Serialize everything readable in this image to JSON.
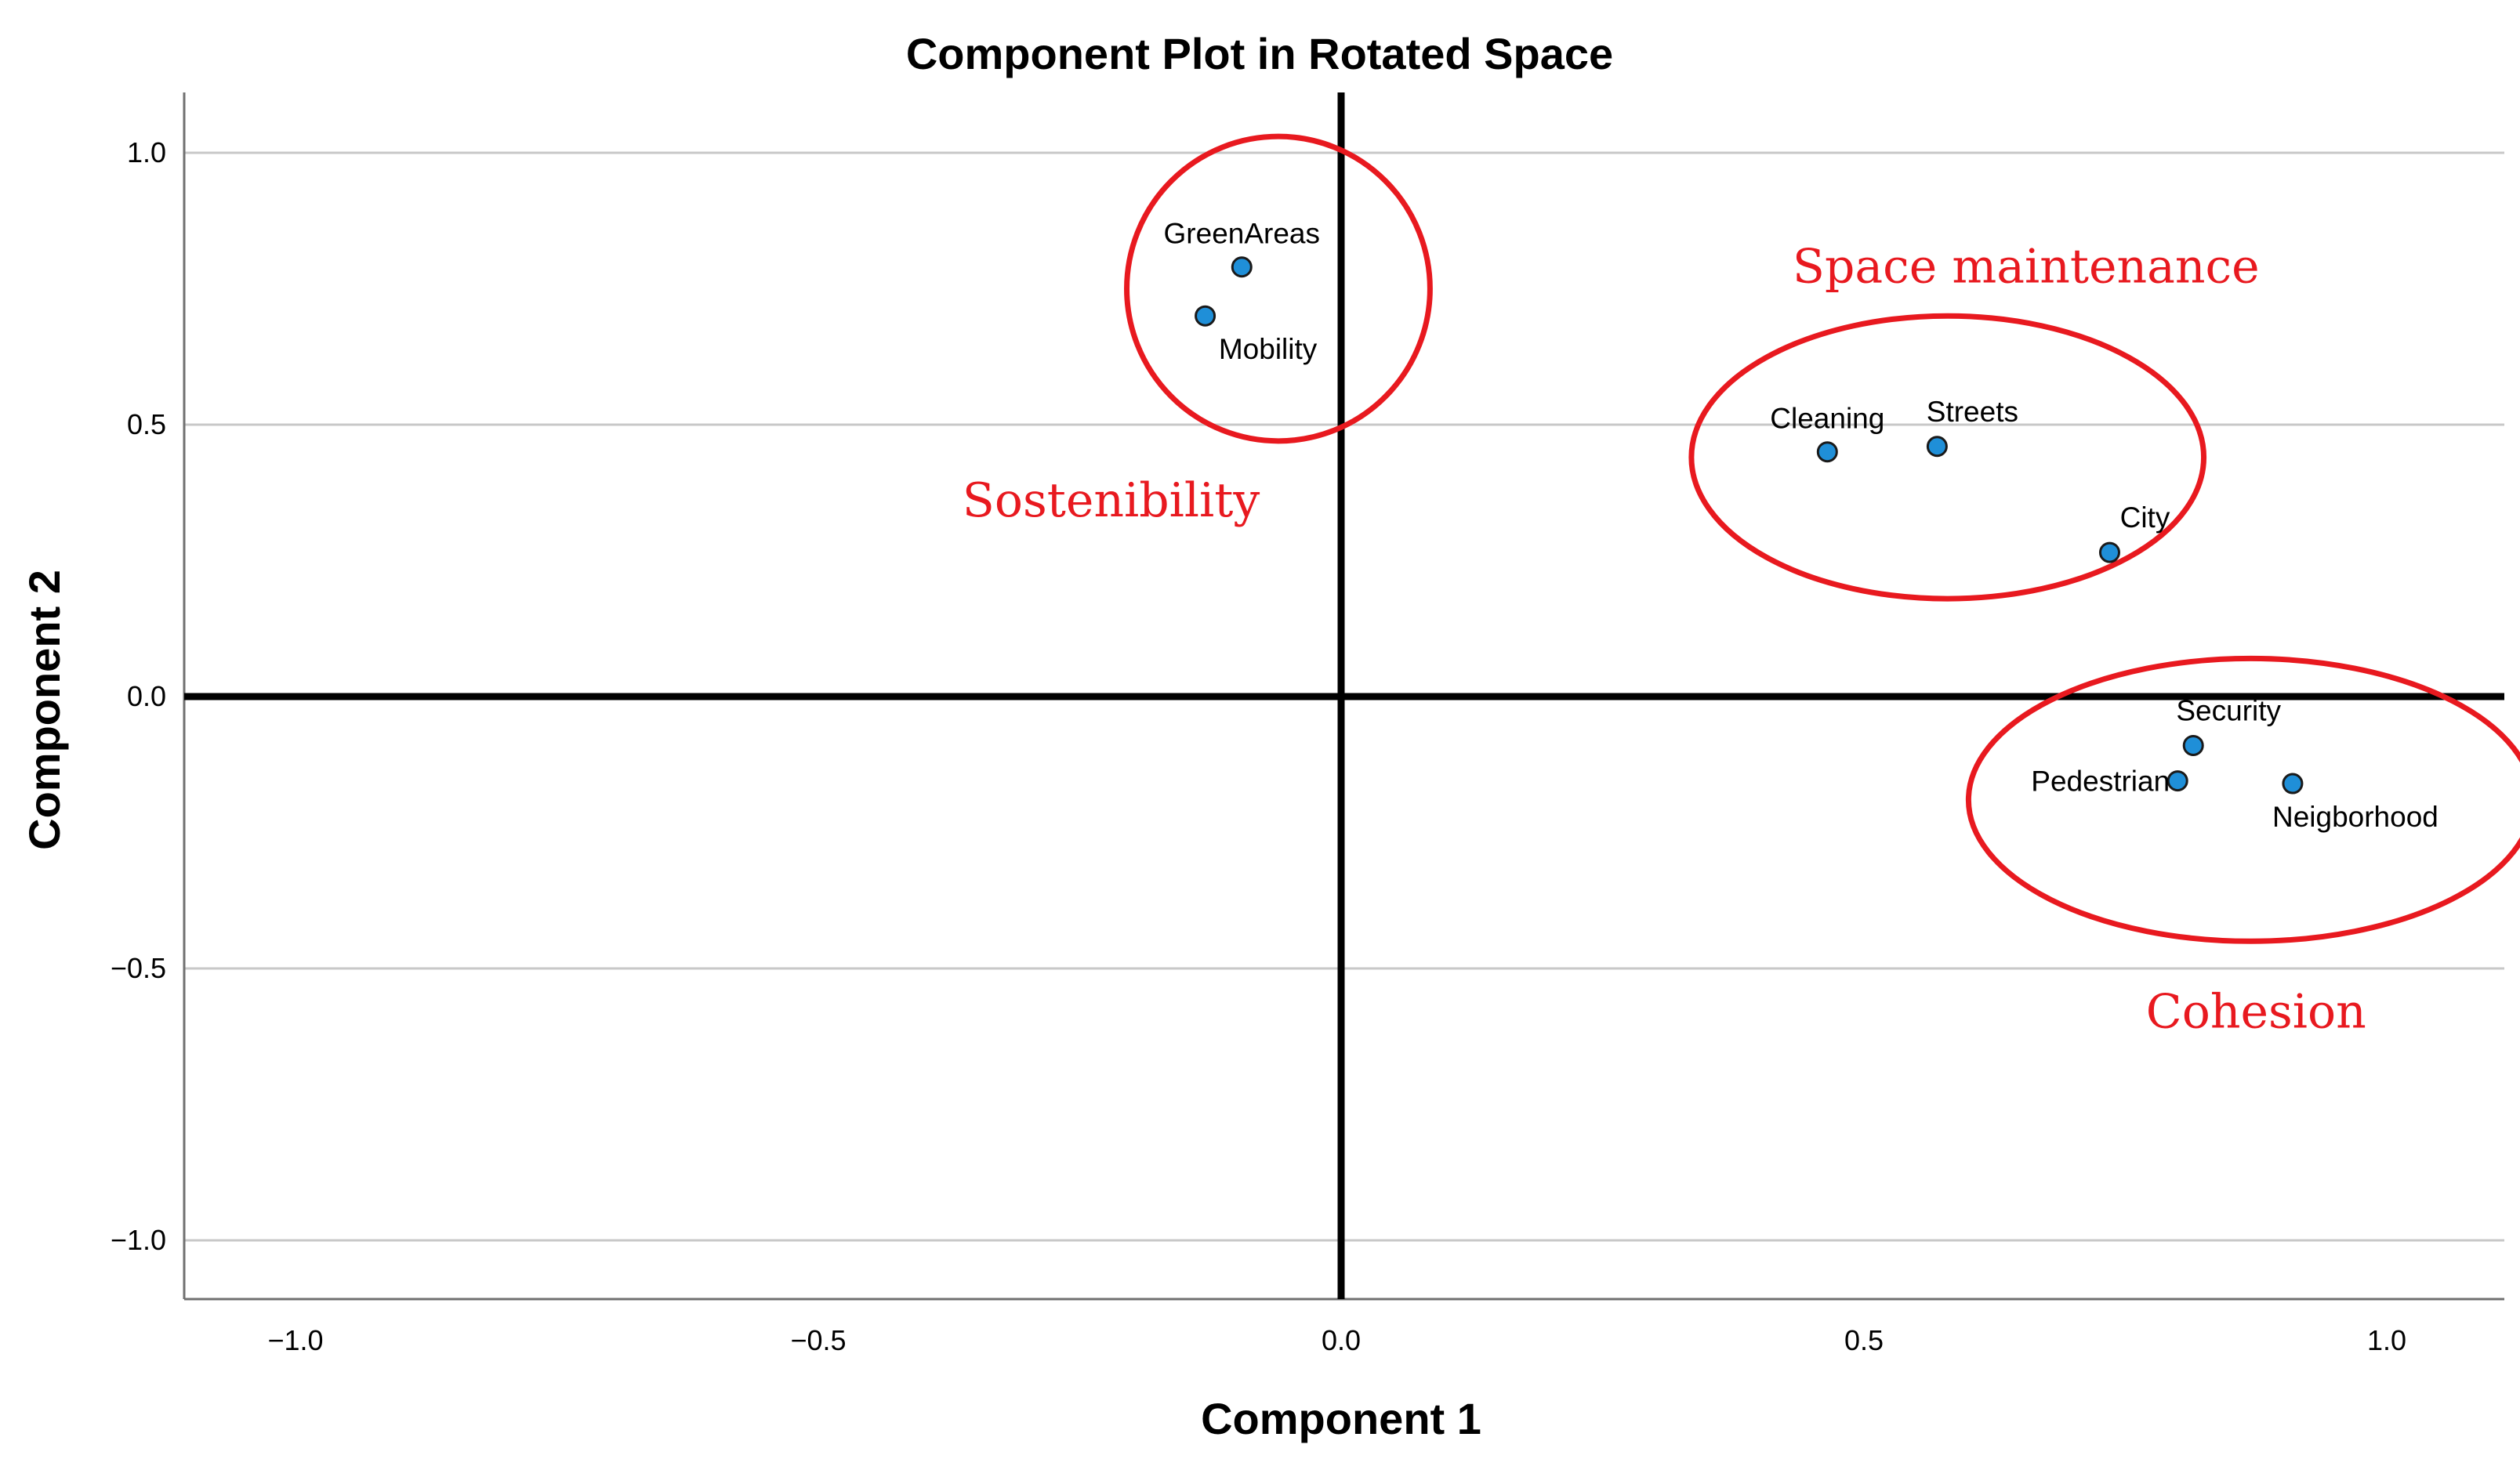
{
  "chart_data": {
    "type": "scatter",
    "title": "Component Plot in Rotated Space",
    "xlabel": "Component 1",
    "ylabel": "Component 2",
    "xlim": [
      -1.1,
      1.1
    ],
    "ylim": [
      -1.1,
      1.1
    ],
    "grid": true,
    "x_ticks": [
      {
        "value": -1.0,
        "label": "−1.0"
      },
      {
        "value": -0.5,
        "label": "−0.5"
      },
      {
        "value": 0.0,
        "label": "0.0"
      },
      {
        "value": 0.5,
        "label": "0.5"
      },
      {
        "value": 1.0,
        "label": "1.0"
      }
    ],
    "y_ticks": [
      {
        "value": 1.0,
        "label": "1.0"
      },
      {
        "value": 0.5,
        "label": "0.5"
      },
      {
        "value": 0.0,
        "label": "0.0"
      },
      {
        "value": -0.5,
        "label": "−0.5"
      },
      {
        "value": -1.0,
        "label": "−1.0"
      }
    ],
    "points": [
      {
        "name": "GreenAreas",
        "x": -0.095,
        "y": 0.79,
        "label_pos": "above"
      },
      {
        "name": "Mobility",
        "x": -0.13,
        "y": 0.7,
        "label_pos": "below-right"
      },
      {
        "name": "Cleaning",
        "x": 0.465,
        "y": 0.45,
        "label_pos": "above"
      },
      {
        "name": "Streets",
        "x": 0.57,
        "y": 0.46,
        "label_pos": "above-right"
      },
      {
        "name": "City",
        "x": 0.735,
        "y": 0.265,
        "label_pos": "above-right"
      },
      {
        "name": "Security",
        "x": 0.815,
        "y": -0.09,
        "label_pos": "above-right"
      },
      {
        "name": "Pedestrian",
        "x": 0.8,
        "y": -0.155,
        "label_pos": "left"
      },
      {
        "name": "Neigborhood",
        "x": 0.91,
        "y": -0.16,
        "label_pos": "below-right"
      }
    ],
    "point_color": "#1f8fd8",
    "annotations": [
      {
        "text": "Sostenibility",
        "cx": -0.06,
        "cy": 0.75,
        "rx": 0.145,
        "ry": 0.28,
        "text_x": -0.22,
        "text_y": 0.36
      },
      {
        "text": "Space maintenance",
        "cx": 0.58,
        "cy": 0.44,
        "rx": 0.245,
        "ry": 0.26,
        "text_x": 0.655,
        "text_y": 0.79
      },
      {
        "text": "Cohesion",
        "cx": 0.87,
        "cy": -0.19,
        "rx": 0.27,
        "ry": 0.26,
        "text_x": 0.875,
        "text_y": -0.58
      }
    ],
    "annotation_color": "#e8191f"
  }
}
